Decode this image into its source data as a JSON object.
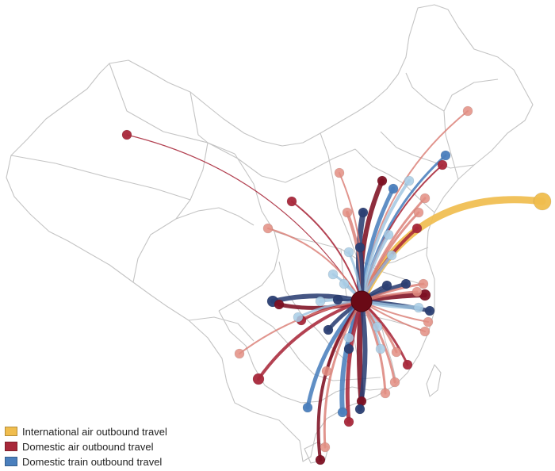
{
  "colors": {
    "international_air": "#f0bd4e",
    "domestic_air": "#a8283a",
    "domestic_train": "#4a7fbd",
    "domestic_air_dark": "#7e1022",
    "domestic_train_dark": "#2b3f73",
    "train_light": "#9cc3e0",
    "hub": "#6a0a16",
    "border": "#c4c4c4"
  },
  "legend": {
    "international_air": "International air outbound travel",
    "domestic_air": "Domestic air outbound travel",
    "domestic_train": "Domestic train outbound travel"
  },
  "icons": [
    "origin-hub-marker",
    "destination-city-marker"
  ]
}
